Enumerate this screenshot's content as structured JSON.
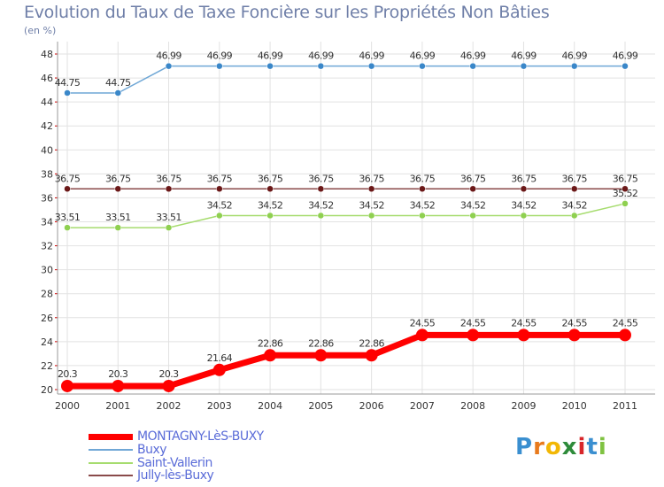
{
  "title": "Evolution du Taux de Taxe Foncière sur les Propriétés Non Bâties",
  "unit": "(en %)",
  "logo": {
    "letters": [
      "P",
      "r",
      "o",
      "x",
      "i",
      "t",
      "i"
    ],
    "colors": [
      "#3a8fd0",
      "#e87a1c",
      "#f2b705",
      "#2e8b3a",
      "#d8262a",
      "#3a8fd0",
      "#7fc241"
    ]
  },
  "chart_data": {
    "type": "line",
    "title": "Evolution du Taux de Taxe Foncière sur les Propriétés Non Bâties",
    "ylabel": "(en %)",
    "xlabel": "",
    "categories": [
      "2000",
      "2001",
      "2002",
      "2003",
      "2004",
      "2005",
      "2006",
      "2007",
      "2008",
      "2009",
      "2010",
      "2011"
    ],
    "ylim": [
      20,
      48
    ],
    "yticks": [
      "20",
      "22",
      "24",
      "26",
      "28",
      "30",
      "32",
      "34",
      "36",
      "38",
      "40",
      "42",
      "44",
      "46",
      "48"
    ],
    "grid": true,
    "series": [
      {
        "name": "MONTAGNY-LèS-BUXY",
        "color": "#ff0000",
        "marker": "#ff0000",
        "width": 7,
        "radius": 7,
        "values": [
          20.3,
          20.3,
          20.3,
          21.64,
          22.86,
          22.86,
          22.86,
          24.55,
          24.55,
          24.55,
          24.55,
          24.55
        ],
        "labels": [
          "20.3",
          "20.3",
          "20.3",
          "21.64",
          "22.86",
          "22.86",
          "22.86",
          "24.55",
          "24.55",
          "24.55",
          "24.55",
          "24.55"
        ]
      },
      {
        "name": "Buxy",
        "color": "#6fa7d6",
        "marker": "#3a87c9",
        "width": 1.5,
        "radius": 3.5,
        "values": [
          44.75,
          44.75,
          46.99,
          46.99,
          46.99,
          46.99,
          46.99,
          46.99,
          46.99,
          46.99,
          46.99,
          46.99
        ],
        "labels": [
          "44.75",
          "44.75",
          "46.99",
          "46.99",
          "46.99",
          "46.99",
          "46.99",
          "46.99",
          "46.99",
          "46.99",
          "46.99",
          "46.99"
        ]
      },
      {
        "name": "Saint-Vallerin",
        "color": "#a6dc6e",
        "marker": "#8fd050",
        "width": 1.5,
        "radius": 3.5,
        "values": [
          33.51,
          33.51,
          33.51,
          34.52,
          34.52,
          34.52,
          34.52,
          34.52,
          34.52,
          34.52,
          34.52,
          35.52
        ],
        "labels": [
          "33.51",
          "33.51",
          "33.51",
          "34.52",
          "34.52",
          "34.52",
          "34.52",
          "34.52",
          "34.52",
          "34.52",
          "34.52",
          "35.52"
        ]
      },
      {
        "name": "Jully-lès-Buxy",
        "color": "#8a4a4a",
        "marker": "#6b1818",
        "width": 1.5,
        "radius": 3.5,
        "values": [
          36.75,
          36.75,
          36.75,
          36.75,
          36.75,
          36.75,
          36.75,
          36.75,
          36.75,
          36.75,
          36.75,
          36.75
        ],
        "labels": [
          "36.75",
          "36.75",
          "36.75",
          "36.75",
          "36.75",
          "36.75",
          "36.75",
          "36.75",
          "36.75",
          "36.75",
          "36.75",
          "36.75"
        ]
      }
    ],
    "legend_position": "bottom-left"
  }
}
